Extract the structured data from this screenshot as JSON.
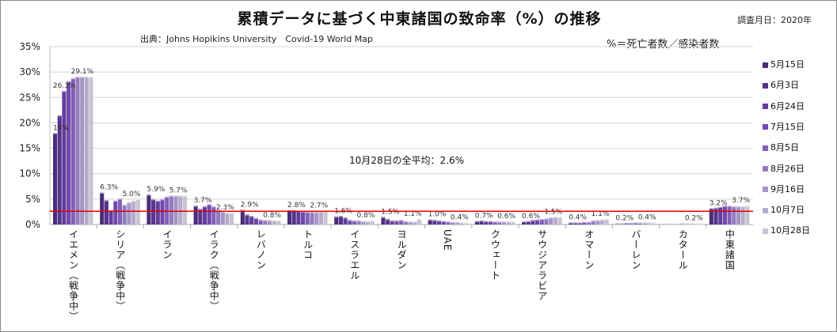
{
  "chart_data": {
    "type": "bar",
    "title": "累積データに基づく中東諸国の致命率（%）の推移",
    "date_note": "調査月日：2020年",
    "source": "出典：Johns Hopikins University　Covid-19 World Map",
    "formula": "%＝死亡者数／感染者数",
    "average_note": "10月28日の全平均：2.6%",
    "average_value": 2.6,
    "average_color": "#e00000",
    "ylim": [
      0,
      35
    ],
    "yticks": [
      "0%",
      "5%",
      "10%",
      "15%",
      "20%",
      "25%",
      "30%",
      "35%"
    ],
    "grid": true,
    "legend": "right",
    "categories": [
      "イエメン（戦争中）",
      "シリア（戦争中）",
      "イラン",
      "イラク（戦争中）",
      "レバノン",
      "トルコ",
      "イスラエル",
      "ヨルダン",
      "UAE",
      "クウェート",
      "サウジアラビア",
      "オマーン",
      "バーレン",
      "カタール",
      "中東諸国"
    ],
    "series": [
      {
        "name": "5月15日",
        "color": "#4a2c7a",
        "values": [
          18,
          6.3,
          5.9,
          3.7,
          2.9,
          2.8,
          1.6,
          1.5,
          1.0,
          0.7,
          0.6,
          0.4,
          0.2,
          0.1,
          3.2
        ]
      },
      {
        "name": "6月3日",
        "color": "#56348c",
        "values": [
          21.5,
          4.8,
          5.0,
          3.1,
          2.0,
          2.8,
          1.7,
          1.1,
          0.9,
          0.8,
          0.7,
          0.4,
          0.2,
          0.1,
          3.3
        ]
      },
      {
        "name": "6月24日",
        "color": "#633d9c",
        "values": [
          26.3,
          2.8,
          4.7,
          3.6,
          1.7,
          2.7,
          1.4,
          0.8,
          0.8,
          0.7,
          0.9,
          0.4,
          0.3,
          0.1,
          3.5
        ]
      },
      {
        "name": "7月15日",
        "color": "#7148ac",
        "values": [
          28.2,
          4.7,
          5.0,
          4.0,
          1.3,
          2.6,
          0.9,
          0.8,
          0.7,
          0.7,
          1.0,
          0.5,
          0.3,
          0.1,
          3.7
        ]
      },
      {
        "name": "8月5日",
        "color": "#8260b6",
        "values": [
          28.8,
          5.1,
          5.5,
          3.6,
          1.0,
          2.5,
          0.8,
          0.9,
          0.6,
          0.6,
          1.1,
          0.5,
          0.4,
          0.2,
          3.7
        ]
      },
      {
        "name": "8月26日",
        "color": "#947bbf",
        "values": [
          29.1,
          3.9,
          5.7,
          2.9,
          0.9,
          2.5,
          0.8,
          0.7,
          0.5,
          0.6,
          1.2,
          0.8,
          0.4,
          0.2,
          3.6
        ]
      },
      {
        "name": "9月16日",
        "color": "#a596c6",
        "values": [
          29.1,
          4.4,
          5.7,
          2.6,
          0.9,
          2.5,
          0.7,
          0.6,
          0.5,
          0.6,
          1.4,
          0.9,
          0.4,
          0.2,
          3.6
        ]
      },
      {
        "name": "10月7日",
        "color": "#b6adcc",
        "values": [
          29.1,
          4.7,
          5.7,
          2.3,
          0.8,
          2.6,
          0.7,
          0.6,
          0.4,
          0.6,
          1.5,
          1.0,
          0.4,
          0.2,
          3.6
        ]
      },
      {
        "name": "10月28日",
        "color": "#c9c4d4",
        "values": [
          29.1,
          5.0,
          5.7,
          2.3,
          0.8,
          2.7,
          0.8,
          1.1,
          0.4,
          0.6,
          1.5,
          1.1,
          0.4,
          0.2,
          3.7
        ]
      }
    ],
    "data_labels": [
      {
        "cat": 0,
        "series": 0,
        "text": "18%"
      },
      {
        "cat": 0,
        "series": 2,
        "text": "26.3%"
      },
      {
        "cat": 0,
        "series": 8,
        "text": "29.1%"
      },
      {
        "cat": 1,
        "series": 0,
        "text": "6.3%"
      },
      {
        "cat": 1,
        "series": 8,
        "text": "5.0%"
      },
      {
        "cat": 2,
        "series": 0,
        "text": "5.9%"
      },
      {
        "cat": 2,
        "series": 8,
        "text": "5.7%"
      },
      {
        "cat": 3,
        "series": 0,
        "text": "3.7%"
      },
      {
        "cat": 3,
        "series": 8,
        "text": "2.3%"
      },
      {
        "cat": 4,
        "series": 0,
        "text": "2.9%"
      },
      {
        "cat": 4,
        "series": 8,
        "text": "0.8%"
      },
      {
        "cat": 5,
        "series": 0,
        "text": "2.8%"
      },
      {
        "cat": 5,
        "series": 8,
        "text": "2.7%"
      },
      {
        "cat": 6,
        "series": 0,
        "text": "1.6%"
      },
      {
        "cat": 6,
        "series": 8,
        "text": "0.8%"
      },
      {
        "cat": 7,
        "series": 0,
        "text": "1.5%"
      },
      {
        "cat": 7,
        "series": 8,
        "text": "1.1%"
      },
      {
        "cat": 8,
        "series": 0,
        "text": "1.0%"
      },
      {
        "cat": 8,
        "series": 8,
        "text": "0.4%"
      },
      {
        "cat": 9,
        "series": 0,
        "text": "0.7%"
      },
      {
        "cat": 9,
        "series": 8,
        "text": "0.6%"
      },
      {
        "cat": 10,
        "series": 0,
        "text": "0.6%"
      },
      {
        "cat": 10,
        "series": 8,
        "text": "1.5%"
      },
      {
        "cat": 11,
        "series": 0,
        "text": "0.4%"
      },
      {
        "cat": 11,
        "series": 8,
        "text": "1.1%"
      },
      {
        "cat": 12,
        "series": 0,
        "text": "0.2%"
      },
      {
        "cat": 12,
        "series": 8,
        "text": "0.4%"
      },
      {
        "cat": 13,
        "series": 8,
        "text": "0.2%"
      },
      {
        "cat": 14,
        "series": 0,
        "text": "3.2%"
      },
      {
        "cat": 14,
        "series": 8,
        "text": "3.7%"
      }
    ]
  }
}
